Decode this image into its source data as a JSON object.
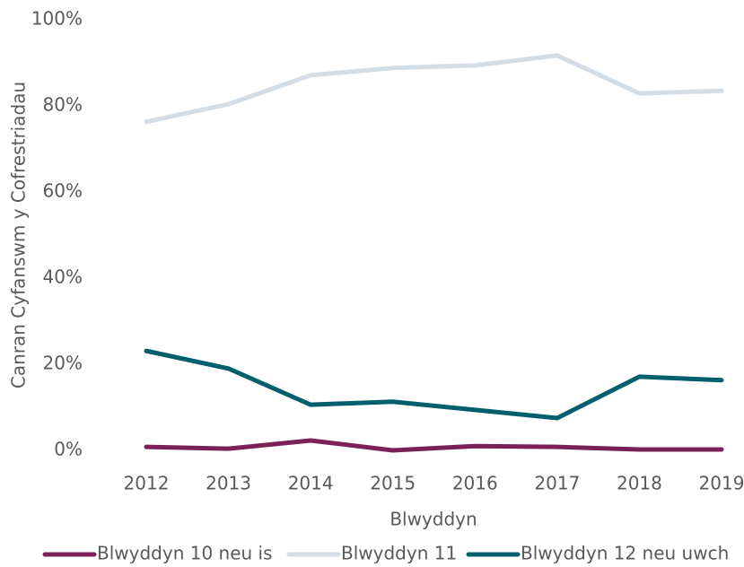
{
  "chart_data": {
    "type": "line",
    "x_label": "Blwyddyn",
    "y_label": "Canran Cyfanswm y Cofrestriadau",
    "categories": [
      "2012",
      "2013",
      "2014",
      "2015",
      "2016",
      "2017",
      "2018",
      "2019"
    ],
    "series": [
      {
        "name": "Blwyddyn 10 neu is",
        "color": "#7b2159",
        "values": [
          0.8,
          0.4,
          2.3,
          0,
          1.0,
          0.8,
          0.2,
          0.2
        ]
      },
      {
        "name": "Blwyddyn 11",
        "color": "#d4dde6",
        "values": [
          76.3,
          80.4,
          87.1,
          88.8,
          89.4,
          91.7,
          82.9,
          83.5
        ]
      },
      {
        "name": "Blwyddyn 12 neu uwch",
        "color": "#005f6b",
        "values": [
          23.1,
          19.0,
          10.6,
          11.3,
          9.4,
          7.5,
          17.1,
          16.3
        ]
      }
    ],
    "ylim": [
      0,
      100
    ],
    "yticks": [
      {
        "value": 0,
        "label": "0%"
      },
      {
        "value": 20,
        "label": "20%"
      },
      {
        "value": 40,
        "label": "40%"
      },
      {
        "value": 60,
        "label": "60%"
      },
      {
        "value": 80,
        "label": "80%"
      },
      {
        "value": 100,
        "label": "100%"
      }
    ],
    "grid": false,
    "legend": "bottom"
  }
}
